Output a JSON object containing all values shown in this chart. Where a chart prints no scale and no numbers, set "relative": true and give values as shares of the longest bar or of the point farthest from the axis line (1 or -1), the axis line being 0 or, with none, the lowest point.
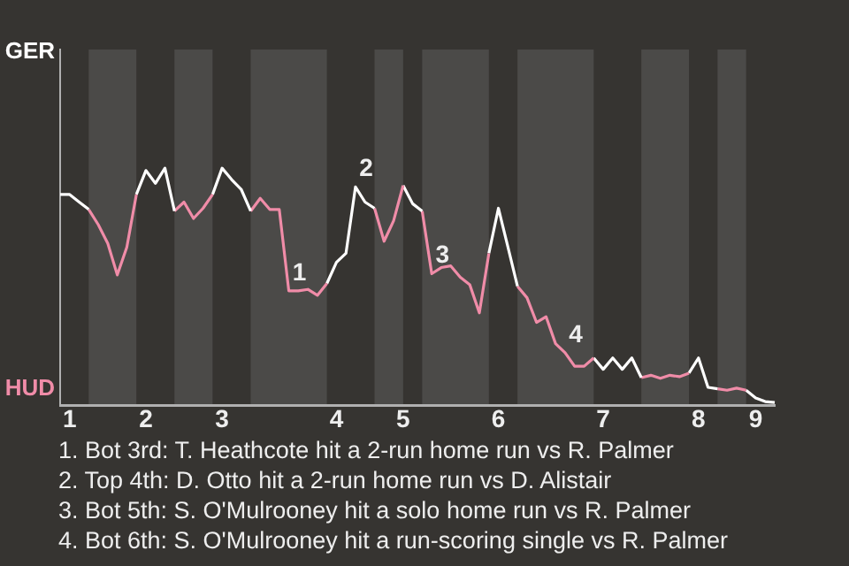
{
  "chart_data": {
    "type": "line",
    "relative": true,
    "legend": false,
    "marker": "none",
    "line_style": "solid",
    "categories": [
      null,
      "1",
      null,
      null,
      null,
      null,
      null,
      null,
      null,
      "2",
      null,
      null,
      null,
      null,
      null,
      null,
      null,
      "3",
      null,
      null,
      null,
      null,
      null,
      null,
      null,
      null,
      null,
      null,
      null,
      "4",
      null,
      null,
      null,
      null,
      null,
      null,
      "5",
      null,
      null,
      null,
      null,
      null,
      null,
      null,
      null,
      null,
      "6",
      null,
      null,
      null,
      null,
      null,
      null,
      null,
      null,
      null,
      null,
      "7",
      null,
      null,
      null,
      null,
      null,
      null,
      null,
      null,
      null,
      "8",
      null,
      null,
      null,
      null,
      null,
      "9",
      null,
      null
    ],
    "series": [
      {
        "name": "GER",
        "color": "#ffffff",
        "values": [
          0.889,
          0.889,
          0.857,
          0.826,
          null,
          null,
          null,
          null,
          null,
          null,
          null,
          null,
          null,
          null,
          null,
          null,
          null,
          null,
          null,
          null,
          null,
          null,
          null,
          null,
          null,
          null,
          null,
          null,
          null,
          null,
          null,
          null,
          null,
          null,
          null,
          null,
          null,
          null,
          null,
          null,
          null,
          null,
          null,
          null,
          null,
          null,
          null,
          null,
          null,
          null,
          null,
          null,
          null,
          null,
          null,
          null,
          null,
          null,
          null,
          null,
          null,
          null,
          null,
          null,
          null,
          null,
          null,
          null,
          null,
          null,
          null,
          null,
          null,
          null,
          null,
          null
        ]
      },
      {
        "name": "HUD",
        "color": "#f08ca8",
        "values": [
          null,
          null,
          null,
          0.826,
          0.762,
          0.683,
          0.55,
          0.667,
          0.889,
          null,
          null,
          null,
          null,
          null,
          null,
          null,
          null,
          null,
          null,
          null,
          null,
          null,
          null,
          null,
          null,
          null,
          null,
          null,
          null,
          null,
          null,
          null,
          null,
          null,
          null,
          null,
          null,
          null,
          null,
          null,
          null,
          null,
          null,
          null,
          null,
          null,
          null,
          null,
          null,
          null,
          null,
          null,
          null,
          null,
          null,
          null,
          null,
          null,
          null,
          null,
          null,
          null,
          null,
          null,
          null,
          null,
          null,
          null,
          null,
          null,
          null,
          null,
          null,
          null,
          null,
          null
        ]
      },
      {
        "color": "#ffffff",
        "values": [
          null,
          null,
          null,
          null,
          null,
          null,
          null,
          null,
          0.889,
          0.99,
          0.936,
          1,
          0.819,
          null,
          null,
          null,
          null,
          null,
          null,
          null,
          null,
          null,
          null,
          null,
          null,
          null,
          null,
          null,
          null,
          null,
          null,
          null,
          null,
          null,
          null,
          null,
          null,
          null,
          null,
          null,
          null,
          null,
          null,
          null,
          null,
          null,
          null,
          null,
          null,
          null,
          null,
          null,
          null,
          null,
          null,
          null,
          null,
          null,
          null,
          null,
          null,
          null,
          null,
          null,
          null,
          null,
          null,
          null,
          null,
          null,
          null,
          null,
          null,
          null,
          null,
          null
        ]
      },
      {
        "color": "#f08ca8",
        "values": [
          null,
          null,
          null,
          null,
          null,
          null,
          null,
          null,
          null,
          null,
          null,
          null,
          0.819,
          0.857,
          0.788,
          0.831,
          0.889,
          null,
          null,
          null,
          null,
          null,
          null,
          null,
          null,
          null,
          null,
          null,
          null,
          null,
          null,
          null,
          null,
          null,
          null,
          null,
          null,
          null,
          null,
          null,
          null,
          null,
          null,
          null,
          null,
          null,
          null,
          null,
          null,
          null,
          null,
          null,
          null,
          null,
          null,
          null,
          null,
          null,
          null,
          null,
          null,
          null,
          null,
          null,
          null,
          null,
          null,
          null,
          null,
          null,
          null,
          null,
          null,
          null,
          null,
          null
        ]
      },
      {
        "color": "#ffffff",
        "values": [
          null,
          null,
          null,
          null,
          null,
          null,
          null,
          null,
          null,
          null,
          null,
          null,
          null,
          null,
          null,
          null,
          0.889,
          1,
          0.952,
          0.911,
          0.819,
          null,
          null,
          null,
          null,
          null,
          null,
          null,
          null,
          null,
          null,
          null,
          null,
          null,
          null,
          null,
          null,
          null,
          null,
          null,
          null,
          null,
          null,
          null,
          null,
          null,
          null,
          null,
          null,
          null,
          null,
          null,
          null,
          null,
          null,
          null,
          null,
          null,
          null,
          null,
          null,
          null,
          null,
          null,
          null,
          null,
          null,
          null,
          null,
          null,
          null,
          null,
          null,
          null,
          null,
          null
        ]
      },
      {
        "color": "#f08ca8",
        "values": [
          null,
          null,
          null,
          null,
          null,
          null,
          null,
          null,
          null,
          null,
          null,
          null,
          null,
          null,
          null,
          null,
          null,
          null,
          null,
          null,
          0.819,
          0.873,
          0.826,
          0.826,
          0.483,
          0.483,
          0.489,
          0.464,
          0.514,
          null,
          null,
          null,
          null,
          null,
          null,
          null,
          null,
          null,
          null,
          null,
          null,
          null,
          null,
          null,
          null,
          null,
          null,
          null,
          null,
          null,
          null,
          null,
          null,
          null,
          null,
          null,
          null,
          null,
          null,
          null,
          null,
          null,
          null,
          null,
          null,
          null,
          null,
          null,
          null,
          null,
          null,
          null,
          null,
          null,
          null,
          null
        ]
      },
      {
        "color": "#ffffff",
        "values": [
          null,
          null,
          null,
          null,
          null,
          null,
          null,
          null,
          null,
          null,
          null,
          null,
          null,
          null,
          null,
          null,
          null,
          null,
          null,
          null,
          null,
          null,
          null,
          null,
          null,
          null,
          null,
          null,
          0.514,
          0.603,
          0.641,
          0.921,
          0.857,
          0.831,
          null,
          null,
          null,
          null,
          null,
          null,
          null,
          null,
          null,
          null,
          null,
          null,
          null,
          null,
          null,
          null,
          null,
          null,
          null,
          null,
          null,
          null,
          null,
          null,
          null,
          null,
          null,
          null,
          null,
          null,
          null,
          null,
          null,
          null,
          null,
          null,
          null,
          null,
          null,
          null,
          null,
          null
        ]
      },
      {
        "color": "#f08ca8",
        "values": [
          null,
          null,
          null,
          null,
          null,
          null,
          null,
          null,
          null,
          null,
          null,
          null,
          null,
          null,
          null,
          null,
          null,
          null,
          null,
          null,
          null,
          null,
          null,
          null,
          null,
          null,
          null,
          null,
          null,
          null,
          null,
          null,
          null,
          0.831,
          0.692,
          0.778,
          0.927,
          null,
          null,
          null,
          null,
          null,
          null,
          null,
          null,
          null,
          null,
          null,
          null,
          null,
          null,
          null,
          null,
          null,
          null,
          null,
          null,
          null,
          null,
          null,
          null,
          null,
          null,
          null,
          null,
          null,
          null,
          null,
          null,
          null,
          null,
          null,
          null,
          null,
          null,
          null
        ]
      },
      {
        "color": "#ffffff",
        "values": [
          null,
          null,
          null,
          null,
          null,
          null,
          null,
          null,
          null,
          null,
          null,
          null,
          null,
          null,
          null,
          null,
          null,
          null,
          null,
          null,
          null,
          null,
          null,
          null,
          null,
          null,
          null,
          null,
          null,
          null,
          null,
          null,
          null,
          null,
          null,
          null,
          0.927,
          0.85,
          0.819,
          null,
          null,
          null,
          null,
          null,
          null,
          null,
          null,
          null,
          null,
          null,
          null,
          null,
          null,
          null,
          null,
          null,
          null,
          null,
          null,
          null,
          null,
          null,
          null,
          null,
          null,
          null,
          null,
          null,
          null,
          null,
          null,
          null,
          null,
          null,
          null,
          null
        ]
      },
      {
        "color": "#f08ca8",
        "values": [
          null,
          null,
          null,
          null,
          null,
          null,
          null,
          null,
          null,
          null,
          null,
          null,
          null,
          null,
          null,
          null,
          null,
          null,
          null,
          null,
          null,
          null,
          null,
          null,
          null,
          null,
          null,
          null,
          null,
          null,
          null,
          null,
          null,
          null,
          null,
          null,
          null,
          null,
          0.819,
          0.555,
          0.581,
          0.588,
          0.54,
          0.508,
          0.39,
          0.641,
          null,
          null,
          null,
          null,
          null,
          null,
          null,
          null,
          null,
          null,
          null,
          null,
          null,
          null,
          null,
          null,
          null,
          null,
          null,
          null,
          null,
          null,
          null,
          null,
          null,
          null,
          null,
          null,
          null,
          null
        ]
      },
      {
        "color": "#ffffff",
        "values": [
          null,
          null,
          null,
          null,
          null,
          null,
          null,
          null,
          null,
          null,
          null,
          null,
          null,
          null,
          null,
          null,
          null,
          null,
          null,
          null,
          null,
          null,
          null,
          null,
          null,
          null,
          null,
          null,
          null,
          null,
          null,
          null,
          null,
          null,
          null,
          null,
          null,
          null,
          null,
          null,
          null,
          null,
          null,
          null,
          null,
          0.641,
          0.831,
          0.667,
          0.502,
          null,
          null,
          null,
          null,
          null,
          null,
          null,
          null,
          null,
          null,
          null,
          null,
          null,
          null,
          null,
          null,
          null,
          null,
          null,
          null,
          null,
          null,
          null,
          null,
          null,
          null,
          null
        ]
      },
      {
        "color": "#f08ca8",
        "values": [
          null,
          null,
          null,
          null,
          null,
          null,
          null,
          null,
          null,
          null,
          null,
          null,
          null,
          null,
          null,
          null,
          null,
          null,
          null,
          null,
          null,
          null,
          null,
          null,
          null,
          null,
          null,
          null,
          null,
          null,
          null,
          null,
          null,
          null,
          null,
          null,
          null,
          null,
          null,
          null,
          null,
          null,
          null,
          null,
          null,
          null,
          null,
          null,
          0.502,
          0.454,
          0.35,
          0.374,
          0.26,
          0.222,
          0.165,
          0.165,
          0.2,
          null,
          null,
          null,
          null,
          null,
          null,
          null,
          null,
          null,
          null,
          null,
          null,
          null,
          null,
          null,
          null,
          null,
          null,
          null
        ]
      },
      {
        "color": "#ffffff",
        "values": [
          null,
          null,
          null,
          null,
          null,
          null,
          null,
          null,
          null,
          null,
          null,
          null,
          null,
          null,
          null,
          null,
          null,
          null,
          null,
          null,
          null,
          null,
          null,
          null,
          null,
          null,
          null,
          null,
          null,
          null,
          null,
          null,
          null,
          null,
          null,
          null,
          null,
          null,
          null,
          null,
          null,
          null,
          null,
          null,
          null,
          null,
          null,
          null,
          null,
          null,
          null,
          null,
          null,
          null,
          null,
          null,
          0.2,
          0.152,
          0.2,
          0.152,
          0.2,
          0.117,
          null,
          null,
          null,
          null,
          null,
          null,
          null,
          null,
          null,
          null,
          null,
          null,
          null,
          null
        ]
      },
      {
        "color": "#f08ca8",
        "values": [
          null,
          null,
          null,
          null,
          null,
          null,
          null,
          null,
          null,
          null,
          null,
          null,
          null,
          null,
          null,
          null,
          null,
          null,
          null,
          null,
          null,
          null,
          null,
          null,
          null,
          null,
          null,
          null,
          null,
          null,
          null,
          null,
          null,
          null,
          null,
          null,
          null,
          null,
          null,
          null,
          null,
          null,
          null,
          null,
          null,
          null,
          null,
          null,
          null,
          null,
          null,
          null,
          null,
          null,
          null,
          null,
          null,
          null,
          null,
          null,
          null,
          0.117,
          0.127,
          0.114,
          0.127,
          0.121,
          0.136,
          null,
          null,
          null,
          null,
          null,
          null,
          null,
          null,
          null
        ]
      },
      {
        "color": "#ffffff",
        "values": [
          null,
          null,
          null,
          null,
          null,
          null,
          null,
          null,
          null,
          null,
          null,
          null,
          null,
          null,
          null,
          null,
          null,
          null,
          null,
          null,
          null,
          null,
          null,
          null,
          null,
          null,
          null,
          null,
          null,
          null,
          null,
          null,
          null,
          null,
          null,
          null,
          null,
          null,
          null,
          null,
          null,
          null,
          null,
          null,
          null,
          null,
          null,
          null,
          null,
          null,
          null,
          null,
          null,
          null,
          null,
          null,
          null,
          null,
          null,
          null,
          null,
          null,
          null,
          null,
          null,
          null,
          0.136,
          0.2,
          0.076,
          0.07,
          null,
          null,
          null,
          null,
          null,
          null
        ]
      },
      {
        "color": "#f08ca8",
        "values": [
          null,
          null,
          null,
          null,
          null,
          null,
          null,
          null,
          null,
          null,
          null,
          null,
          null,
          null,
          null,
          null,
          null,
          null,
          null,
          null,
          null,
          null,
          null,
          null,
          null,
          null,
          null,
          null,
          null,
          null,
          null,
          null,
          null,
          null,
          null,
          null,
          null,
          null,
          null,
          null,
          null,
          null,
          null,
          null,
          null,
          null,
          null,
          null,
          null,
          null,
          null,
          null,
          null,
          null,
          null,
          null,
          null,
          null,
          null,
          null,
          null,
          null,
          null,
          null,
          null,
          null,
          null,
          null,
          null,
          0.07,
          0.064,
          0.073,
          0.064,
          null,
          null,
          null
        ]
      },
      {
        "color": "#ffffff",
        "values": [
          null,
          null,
          null,
          null,
          null,
          null,
          null,
          null,
          null,
          null,
          null,
          null,
          null,
          null,
          null,
          null,
          null,
          null,
          null,
          null,
          null,
          null,
          null,
          null,
          null,
          null,
          null,
          null,
          null,
          null,
          null,
          null,
          null,
          null,
          null,
          null,
          null,
          null,
          null,
          null,
          null,
          null,
          null,
          null,
          null,
          null,
          null,
          null,
          null,
          null,
          null,
          null,
          null,
          null,
          null,
          null,
          null,
          null,
          null,
          null,
          null,
          null,
          null,
          null,
          null,
          null,
          null,
          null,
          null,
          null,
          null,
          null,
          0.064,
          0.031,
          0.016,
          0.012
        ]
      }
    ],
    "annotations": [
      {
        "text": "1",
        "y": 0.483
      },
      {
        "text": "2",
        "y": 0.921
      },
      {
        "text": "3",
        "y": 0.555
      },
      {
        "text": "4",
        "y": 0.222
      },
      "1. Bot 3rd: T. Heathcote hit a 2-run home run vs R. Palmer",
      "2. Top 4th: D. Otto hit a 2-run home run vs D. Alistair",
      "3. Bot 5th: S. O'Mulrooney hit a solo home run vs R. Palmer",
      "4. Bot 6th: S. O'Mulrooney hit a run-scoring single vs R. Palmer"
    ]
  }
}
